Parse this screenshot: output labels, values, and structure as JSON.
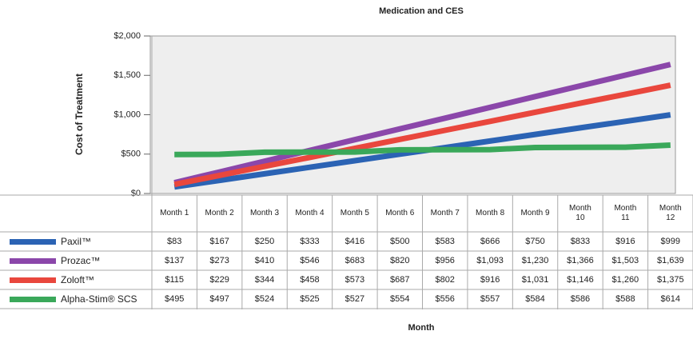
{
  "chart_data": {
    "type": "line",
    "title": "Medication and CES",
    "x_label": "Month",
    "y_label": "Cost of Treatment",
    "categories": [
      "Month 1",
      "Month 2",
      "Month 3",
      "Month 4",
      "Month 5",
      "Month 6",
      "Month 7",
      "Month 8",
      "Month 9",
      "Month 10",
      "Month 11",
      "Month 12"
    ],
    "ylim": [
      0,
      2000
    ],
    "yticks": [
      {
        "value": 0,
        "label": "$0"
      },
      {
        "value": 500,
        "label": "$500"
      },
      {
        "value": 1000,
        "label": "$1,000"
      },
      {
        "value": 1500,
        "label": "$1,500"
      },
      {
        "value": 2000,
        "label": "$2,000"
      }
    ],
    "series": [
      {
        "name": "Paxil™",
        "color": "#2b63b4",
        "values": [
          83,
          167,
          250,
          333,
          416,
          500,
          583,
          666,
          750,
          833,
          916,
          999
        ],
        "value_labels": [
          "$83",
          "$167",
          "$250",
          "$333",
          "$416",
          "$500",
          "$583",
          "$666",
          "$750",
          "$833",
          "$916",
          "$999"
        ]
      },
      {
        "name": "Prozac™",
        "color": "#8b47aa",
        "values": [
          137,
          273,
          410,
          546,
          683,
          820,
          956,
          1093,
          1230,
          1366,
          1503,
          1639
        ],
        "value_labels": [
          "$137",
          "$273",
          "$410",
          "$546",
          "$683",
          "$820",
          "$956",
          "$1,093",
          "$1,230",
          "$1,366",
          "$1,503",
          "$1,639"
        ]
      },
      {
        "name": "Zoloft™",
        "color": "#e9473d",
        "values": [
          115,
          229,
          344,
          458,
          573,
          687,
          802,
          916,
          1031,
          1146,
          1260,
          1375
        ],
        "value_labels": [
          "$115",
          "$229",
          "$344",
          "$458",
          "$573",
          "$687",
          "$802",
          "$916",
          "$1,031",
          "$1,146",
          "$1,260",
          "$1,375"
        ]
      },
      {
        "name": "Alpha-Stim® SCS",
        "color": "#3aa85a",
        "values": [
          495,
          497,
          524,
          525,
          527,
          554,
          556,
          557,
          584,
          586,
          588,
          614
        ],
        "value_labels": [
          "$495",
          "$497",
          "$524",
          "$525",
          "$527",
          "$554",
          "$556",
          "$557",
          "$584",
          "$586",
          "$588",
          "$614"
        ]
      }
    ]
  }
}
